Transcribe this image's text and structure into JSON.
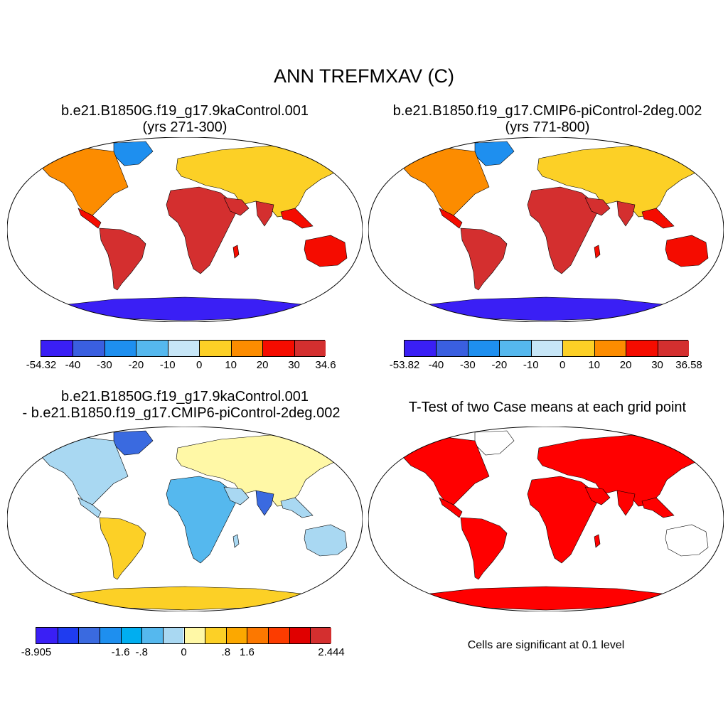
{
  "main_title": "ANN TREFMXAV (C)",
  "panels": {
    "p1": {
      "title_line1": "b.e21.B1850G.f19_g17.9kaControl.001",
      "title_line2": "(yrs 271-300)"
    },
    "p2": {
      "title_line1": "b.e21.B1850.f19_g17.CMIP6-piControl-2deg.002",
      "title_line2": "(yrs 771-800)"
    },
    "p3": {
      "title_line1": "b.e21.B1850G.f19_g17.9kaControl.001",
      "title_line2": "- b.e21.B1850.f19_g17.CMIP6-piControl-2deg.002"
    },
    "p4": {
      "title": "T-Test of two Case means at each grid point",
      "note": "Cells are significant at 0.1 level",
      "sig_color": "#ff0000"
    }
  },
  "colorbars": {
    "cb1": {
      "labels": [
        "-54.32",
        "-40",
        "-30",
        "-20",
        "-10",
        "0",
        "10",
        "20",
        "30",
        "34.6"
      ],
      "colors": [
        "#3a1ff5",
        "#3a5fe0",
        "#1e8fef",
        "#55b8ee",
        "#c7e6f7",
        "#fcd026",
        "#fc8c00",
        "#f50c00",
        "#d42f2f"
      ]
    },
    "cb2": {
      "labels": [
        "-53.82",
        "-40",
        "-30",
        "-20",
        "-10",
        "0",
        "10",
        "20",
        "30",
        "36.58"
      ],
      "colors": [
        "#3a1ff5",
        "#3a5fe0",
        "#1e8fef",
        "#55b8ee",
        "#c7e6f7",
        "#fcd026",
        "#fc8c00",
        "#f50c00",
        "#d42f2f"
      ]
    },
    "cb3": {
      "labels": [
        "-8.905",
        "-1.6",
        "-.8",
        "0",
        ".8",
        "1.6",
        "2.444"
      ],
      "colors": [
        "#3a1ff5",
        "#1f3cf0",
        "#3a6ae0",
        "#1e8fef",
        "#00aef0",
        "#55b8ee",
        "#a9d8f2",
        "#fff8a6",
        "#fcd026",
        "#fca800",
        "#fc7800",
        "#fc3c00",
        "#e00000",
        "#d42f2f"
      ]
    }
  }
}
